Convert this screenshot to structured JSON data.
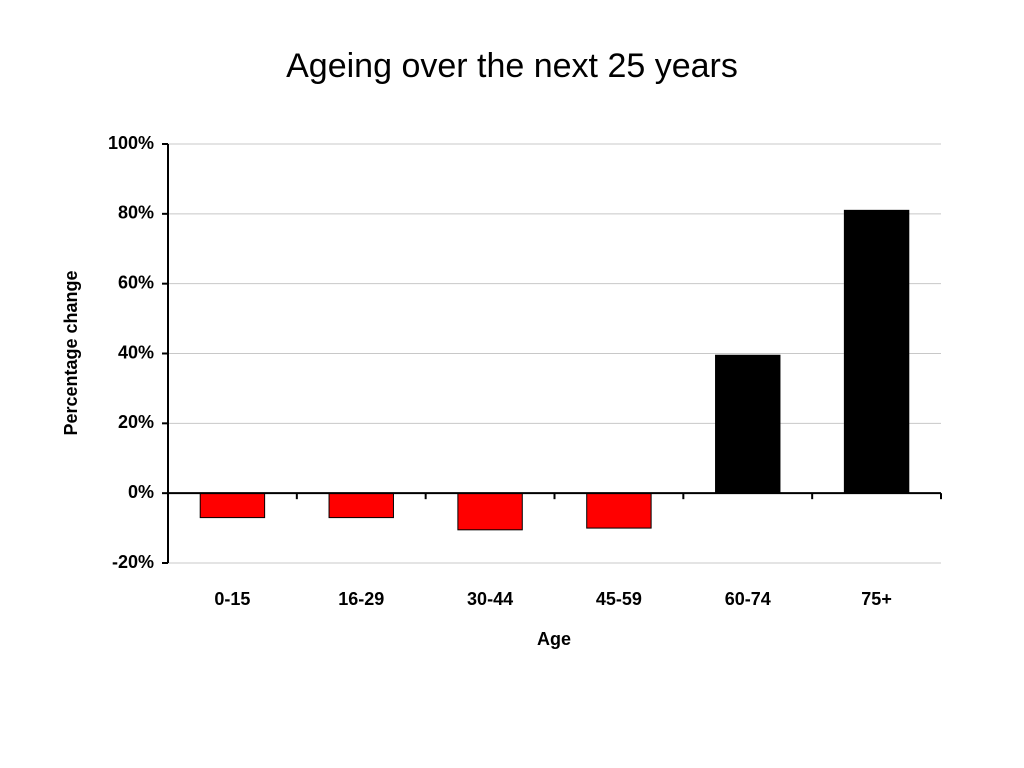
{
  "chart_data": {
    "type": "bar",
    "title": "Ageing over the next 25 years",
    "x_label": "Age",
    "y_label": "Percentage change",
    "categories": [
      "0-15",
      "16-29",
      "30-44",
      "45-59",
      "60-74",
      "75+"
    ],
    "values": [
      -7,
      -7,
      -10.5,
      -10,
      39.5,
      81
    ],
    "colors": [
      "#ff0000",
      "#ff0000",
      "#ff0000",
      "#ff0000",
      "#000000",
      "#000000"
    ],
    "ylim": [
      -20,
      100
    ],
    "yticks": [
      {
        "value": -20,
        "label": "-20%"
      },
      {
        "value": 0,
        "label": "0%"
      },
      {
        "value": 20,
        "label": "20%"
      },
      {
        "value": 40,
        "label": "40%"
      },
      {
        "value": 60,
        "label": "60%"
      },
      {
        "value": 80,
        "label": "80%"
      },
      {
        "value": 100,
        "label": "100%"
      }
    ],
    "grid": true
  }
}
